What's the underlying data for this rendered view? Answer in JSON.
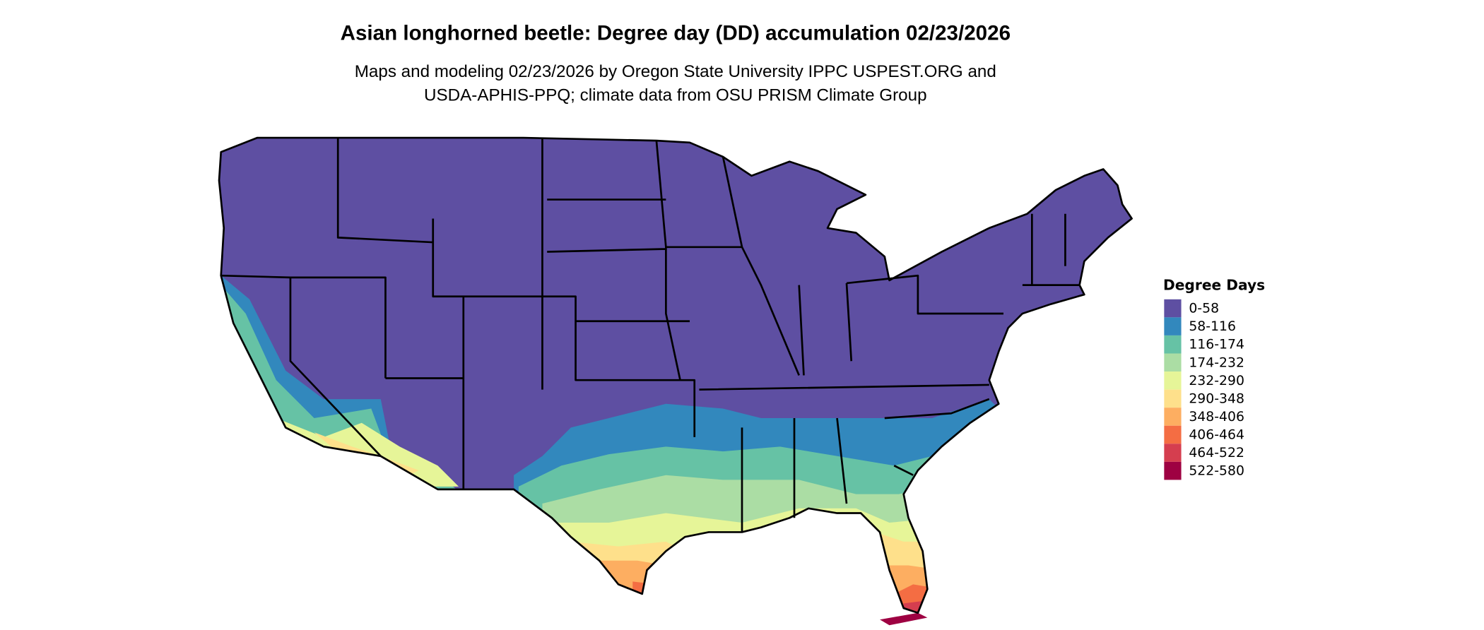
{
  "title": "Asian longhorned beetle: Degree day (DD) accumulation 02/23/2026",
  "subtitle_lines": [
    "Maps and modeling 02/23/2026 by Oregon State University IPPC USPEST.ORG and",
    "USDA-APHIS-PPQ; climate data from OSU PRISM Climate Group"
  ],
  "legend": {
    "title": "Degree Days",
    "placement": "right",
    "items": [
      {
        "label": "0-58",
        "color": "#5E4FA2"
      },
      {
        "label": "58-116",
        "color": "#3288BD"
      },
      {
        "label": "116-174",
        "color": "#66C2A5"
      },
      {
        "label": "174-232",
        "color": "#ABDDA4"
      },
      {
        "label": "232-290",
        "color": "#E6F598"
      },
      {
        "label": "290-348",
        "color": "#FEE08B"
      },
      {
        "label": "348-406",
        "color": "#FDAE61"
      },
      {
        "label": "406-464",
        "color": "#F46D43"
      },
      {
        "label": "464-522",
        "color": "#D53E4F"
      },
      {
        "label": "522-580",
        "color": "#9E0142"
      }
    ]
  },
  "map": {
    "region": "Contiguous United States",
    "border_color": "#000000"
  }
}
